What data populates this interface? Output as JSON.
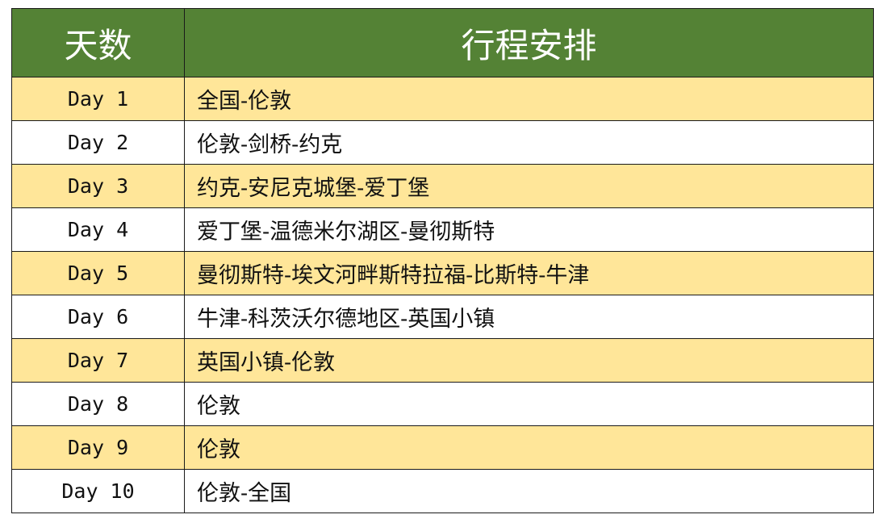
{
  "header": {
    "day_col": "天数",
    "plan_col": "行程安排"
  },
  "colors": {
    "header_bg": "#548235",
    "odd_row_bg": "#FFE699",
    "even_row_bg": "#FFFFFF"
  },
  "rows": [
    {
      "day": "Day 1",
      "plan": "全国-伦敦"
    },
    {
      "day": "Day 2",
      "plan": "伦敦-剑桥-约克"
    },
    {
      "day": "Day 3",
      "plan": "约克-安尼克城堡-爱丁堡"
    },
    {
      "day": "Day 4",
      "plan": "爱丁堡-温德米尔湖区-曼彻斯特"
    },
    {
      "day": "Day 5",
      "plan": "曼彻斯特-埃文河畔斯特拉福-比斯特-牛津"
    },
    {
      "day": "Day 6",
      "plan": "牛津-科茨沃尔德地区-英国小镇"
    },
    {
      "day": "Day 7",
      "plan": "英国小镇-伦敦"
    },
    {
      "day": "Day 8",
      "plan": "伦敦"
    },
    {
      "day": "Day 9",
      "plan": "伦敦"
    },
    {
      "day": "Day 10",
      "plan": "伦敦-全国"
    }
  ]
}
